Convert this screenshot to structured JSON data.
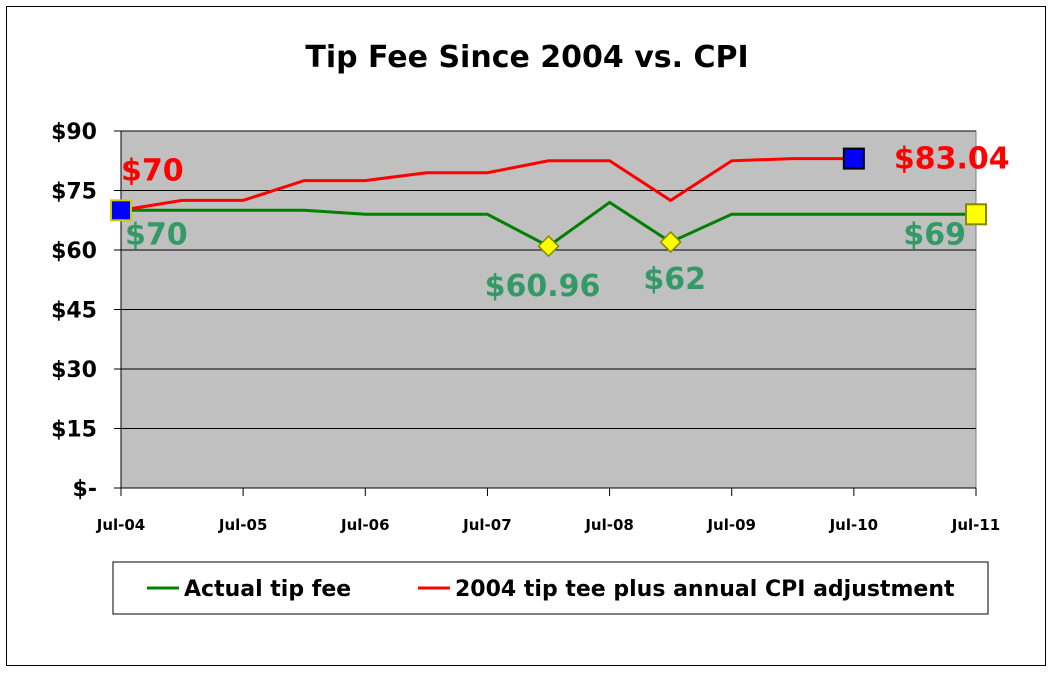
{
  "chart_data": {
    "type": "line",
    "title": "Tip Fee Since 2004 vs. CPI",
    "xlabel": "",
    "ylabel": "",
    "x_tick_labels": [
      "Jul-04",
      "Jul-05",
      "Jul-06",
      "Jul-07",
      "Jul-08",
      "Jul-09",
      "Jul-10",
      "Jul-11"
    ],
    "y_tick_labels": [
      "$-",
      "$15",
      "$30",
      "$45",
      "$60",
      "$75",
      "$90"
    ],
    "y_ticks": [
      0,
      15,
      30,
      45,
      60,
      75,
      90
    ],
    "ylim": [
      0,
      90
    ],
    "xlim": [
      2004.5,
      2011.5
    ],
    "grid": "horizontal",
    "plot_background": "#c0c0c0",
    "legend_position": "bottom",
    "series": [
      {
        "name": "Actual tip fee",
        "color": "#008000",
        "x": [
          2004.5,
          2005.0,
          2005.5,
          2006.0,
          2006.5,
          2007.0,
          2007.5,
          2008.0,
          2008.5,
          2009.0,
          2009.5,
          2010.0,
          2010.5,
          2011.0,
          2011.5
        ],
        "y": [
          70,
          70,
          70,
          70,
          69,
          69,
          69,
          60.96,
          72,
          62,
          69,
          69,
          69,
          69,
          69
        ]
      },
      {
        "name": "2004 tip tee plus annual CPI adjustment",
        "color": "#ff0000",
        "x": [
          2004.5,
          2005.0,
          2005.5,
          2006.0,
          2006.5,
          2007.0,
          2007.5,
          2008.0,
          2008.5,
          2009.0,
          2009.5,
          2010.0,
          2010.5
        ],
        "y": [
          70,
          72.5,
          72.5,
          77.5,
          77.5,
          79.5,
          79.5,
          82.5,
          82.5,
          72.5,
          82.5,
          83.04,
          83.04
        ]
      }
    ],
    "markers": [
      {
        "series": "2004 tip tee plus annual CPI adjustment",
        "x": 2004.5,
        "y": 70,
        "shape": "square",
        "fill": "#0000ff",
        "stroke": "#cccc00"
      },
      {
        "series": "2004 tip tee plus annual CPI adjustment",
        "x": 2010.5,
        "y": 83.04,
        "shape": "square",
        "fill": "#0000ff",
        "stroke": "#000000"
      },
      {
        "series": "Actual tip fee",
        "x": 2008.0,
        "y": 60.96,
        "shape": "diamond",
        "fill": "#ffff00",
        "stroke": "#888800"
      },
      {
        "series": "Actual tip fee",
        "x": 2009.0,
        "y": 62,
        "shape": "diamond",
        "fill": "#ffff00",
        "stroke": "#888800"
      },
      {
        "series": "Actual tip fee",
        "x": 2011.5,
        "y": 69,
        "shape": "square",
        "fill": "#ffff00",
        "stroke": "#888800"
      }
    ],
    "annotations": [
      {
        "text": "$70",
        "color": "#ff0000",
        "x": 2004.5,
        "y": 70,
        "dx": 0,
        "dy": -30,
        "anchor": "start"
      },
      {
        "text": "$83.04",
        "color": "#ff0000",
        "x": 2010.5,
        "y": 83.04,
        "dx": 40,
        "dy": 10,
        "anchor": "start"
      },
      {
        "text": "$70",
        "color": "#339966",
        "x": 2004.5,
        "y": 70,
        "dx": 4,
        "dy": 34,
        "anchor": "start"
      },
      {
        "text": "$60.96",
        "color": "#339966",
        "x": 2008.0,
        "y": 60.96,
        "dx": -6,
        "dy": 50,
        "anchor": "middle"
      },
      {
        "text": "$62",
        "color": "#339966",
        "x": 2009.0,
        "y": 62,
        "dx": 4,
        "dy": 47,
        "anchor": "middle"
      },
      {
        "text": "$69",
        "color": "#339966",
        "x": 2011.5,
        "y": 69,
        "dx": -10,
        "dy": 30,
        "anchor": "end"
      }
    ]
  }
}
